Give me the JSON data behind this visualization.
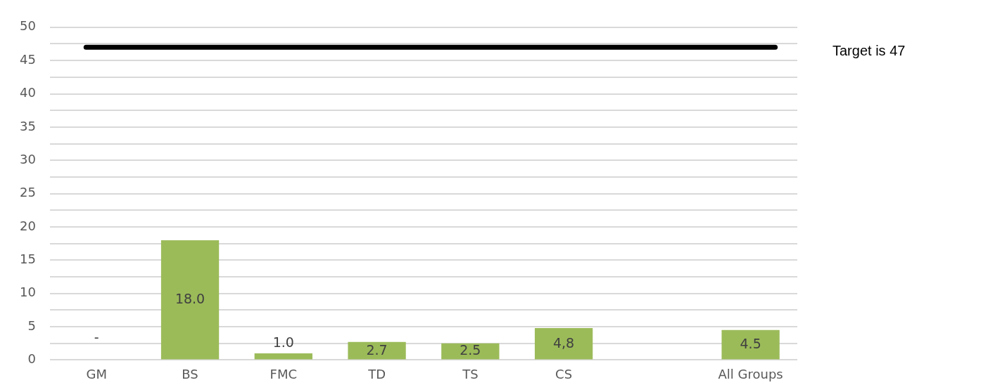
{
  "chart_data": {
    "type": "bar",
    "categories": [
      "GM",
      "BS",
      "FMC",
      "TD",
      "TS",
      "CS",
      null,
      "All Groups"
    ],
    "values": [
      null,
      18.0,
      1.0,
      2.7,
      2.5,
      4.8,
      null,
      4.5
    ],
    "value_labels": [
      "-",
      "18.0",
      "1.0",
      "2.7",
      "2.5",
      "4,8",
      null,
      "4.5"
    ],
    "color": "#9bbb59",
    "ylim": [
      0,
      50
    ],
    "yticks": [
      0,
      {
        "value": 2.5,
        "label": null
      },
      5,
      {
        "value": 7.5,
        "label": null
      },
      10,
      {
        "value": 12.5,
        "label": null
      },
      15,
      {
        "value": 17.5,
        "label": null
      },
      20,
      {
        "value": 22.5,
        "label": null
      },
      25,
      {
        "value": 27.5,
        "label": null
      },
      30,
      {
        "value": 32.5,
        "label": null
      },
      35,
      {
        "value": 37.5,
        "label": null
      },
      40,
      {
        "value": 42.5,
        "label": null
      },
      45,
      {
        "value": 47.5,
        "label": null
      },
      50
    ],
    "grid": "y",
    "ref_lines": [
      {
        "axis": "y",
        "value": 47,
        "label": "Target is 47",
        "color": "#000000"
      }
    ]
  }
}
